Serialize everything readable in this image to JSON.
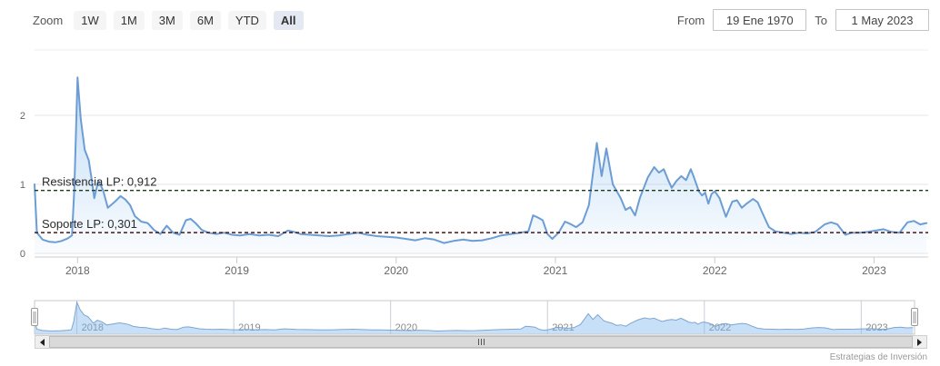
{
  "toolbar": {
    "zoom_label": "Zoom",
    "zoom_buttons": [
      "1W",
      "1M",
      "3M",
      "6M",
      "YTD",
      "All"
    ],
    "selected_zoom": "All",
    "from_label": "From",
    "from_value": "19 Ene 1970",
    "to_label": "To",
    "to_value": "1 May 2023"
  },
  "credit": "Estrategias de Inversión",
  "colors": {
    "series_line": "#6c9dd4",
    "series_fill": "#7cb5ec",
    "grid": "#e6e6e6",
    "axis_line": "#cccccc",
    "axis_label": "#666666",
    "resistance_line": "#1d3a1d",
    "support_line": "#4a1515",
    "annotation_text": "#2b2b2b",
    "nav_grid": "#c9ced7",
    "nav_label": "#8a8a8a",
    "selected_button_bg": "#e4e8f2"
  },
  "chart_data": {
    "type": "area",
    "title": "",
    "xlabel": "",
    "ylabel": "",
    "grid": true,
    "legend_position": "none",
    "xlim": [
      2017.73,
      2023.34
    ],
    "ylim": [
      0,
      2.9
    ],
    "x_ticks": [
      2018,
      2019,
      2020,
      2021,
      2022,
      2023
    ],
    "x_tick_labels": [
      "2018",
      "2019",
      "2020",
      "2021",
      "2022",
      "2023"
    ],
    "y_ticks": [
      0,
      1,
      2
    ],
    "y_tick_labels": [
      "0",
      "1",
      "2"
    ],
    "series": [
      {
        "name": "price",
        "color": "#6c9dd4",
        "points": [
          [
            2017.73,
            1.0
          ],
          [
            2017.745,
            0.3
          ],
          [
            2017.78,
            0.2
          ],
          [
            2017.82,
            0.17
          ],
          [
            2017.86,
            0.16
          ],
          [
            2017.9,
            0.18
          ],
          [
            2017.94,
            0.22
          ],
          [
            2017.965,
            0.26
          ],
          [
            2017.98,
            0.95
          ],
          [
            2018.0,
            2.55
          ],
          [
            2018.02,
            1.95
          ],
          [
            2018.045,
            1.5
          ],
          [
            2018.07,
            1.35
          ],
          [
            2018.09,
            1.05
          ],
          [
            2018.105,
            0.8
          ],
          [
            2018.13,
            1.05
          ],
          [
            2018.16,
            0.92
          ],
          [
            2018.19,
            0.66
          ],
          [
            2018.23,
            0.74
          ],
          [
            2018.27,
            0.83
          ],
          [
            2018.3,
            0.78
          ],
          [
            2018.33,
            0.7
          ],
          [
            2018.36,
            0.54
          ],
          [
            2018.4,
            0.46
          ],
          [
            2018.44,
            0.44
          ],
          [
            2018.48,
            0.34
          ],
          [
            2018.52,
            0.28
          ],
          [
            2018.56,
            0.4
          ],
          [
            2018.6,
            0.3
          ],
          [
            2018.64,
            0.27
          ],
          [
            2018.68,
            0.48
          ],
          [
            2018.71,
            0.5
          ],
          [
            2018.74,
            0.44
          ],
          [
            2018.78,
            0.34
          ],
          [
            2018.82,
            0.3
          ],
          [
            2018.87,
            0.28
          ],
          [
            2018.92,
            0.3
          ],
          [
            2018.97,
            0.27
          ],
          [
            2019.02,
            0.26
          ],
          [
            2019.08,
            0.28
          ],
          [
            2019.14,
            0.26
          ],
          [
            2019.2,
            0.27
          ],
          [
            2019.26,
            0.25
          ],
          [
            2019.32,
            0.33
          ],
          [
            2019.36,
            0.31
          ],
          [
            2019.4,
            0.28
          ],
          [
            2019.46,
            0.27
          ],
          [
            2019.52,
            0.26
          ],
          [
            2019.58,
            0.25
          ],
          [
            2019.64,
            0.26
          ],
          [
            2019.7,
            0.28
          ],
          [
            2019.76,
            0.3
          ],
          [
            2019.82,
            0.27
          ],
          [
            2019.88,
            0.25
          ],
          [
            2019.94,
            0.24
          ],
          [
            2020.0,
            0.23
          ],
          [
            2020.06,
            0.21
          ],
          [
            2020.12,
            0.19
          ],
          [
            2020.18,
            0.22
          ],
          [
            2020.24,
            0.2
          ],
          [
            2020.3,
            0.15
          ],
          [
            2020.36,
            0.18
          ],
          [
            2020.42,
            0.2
          ],
          [
            2020.48,
            0.18
          ],
          [
            2020.54,
            0.19
          ],
          [
            2020.6,
            0.22
          ],
          [
            2020.66,
            0.26
          ],
          [
            2020.72,
            0.28
          ],
          [
            2020.78,
            0.3
          ],
          [
            2020.83,
            0.32
          ],
          [
            2020.86,
            0.55
          ],
          [
            2020.89,
            0.52
          ],
          [
            2020.92,
            0.48
          ],
          [
            2020.95,
            0.28
          ],
          [
            2020.98,
            0.21
          ],
          [
            2021.02,
            0.3
          ],
          [
            2021.06,
            0.46
          ],
          [
            2021.09,
            0.43
          ],
          [
            2021.13,
            0.38
          ],
          [
            2021.17,
            0.45
          ],
          [
            2021.21,
            0.7
          ],
          [
            2021.26,
            1.6
          ],
          [
            2021.29,
            1.12
          ],
          [
            2021.32,
            1.52
          ],
          [
            2021.36,
            1.0
          ],
          [
            2021.38,
            0.92
          ],
          [
            2021.41,
            0.8
          ],
          [
            2021.44,
            0.63
          ],
          [
            2021.47,
            0.67
          ],
          [
            2021.5,
            0.55
          ],
          [
            2021.53,
            0.8
          ],
          [
            2021.58,
            1.1
          ],
          [
            2021.62,
            1.25
          ],
          [
            2021.65,
            1.17
          ],
          [
            2021.68,
            1.22
          ],
          [
            2021.71,
            1.05
          ],
          [
            2021.73,
            0.95
          ],
          [
            2021.76,
            1.05
          ],
          [
            2021.79,
            1.12
          ],
          [
            2021.82,
            1.06
          ],
          [
            2021.85,
            1.22
          ],
          [
            2021.87,
            1.1
          ],
          [
            2021.9,
            0.9
          ],
          [
            2021.92,
            0.84
          ],
          [
            2021.94,
            0.88
          ],
          [
            2021.96,
            0.72
          ],
          [
            2021.98,
            0.86
          ],
          [
            2022.0,
            0.9
          ],
          [
            2022.03,
            0.8
          ],
          [
            2022.07,
            0.53
          ],
          [
            2022.11,
            0.75
          ],
          [
            2022.14,
            0.77
          ],
          [
            2022.17,
            0.66
          ],
          [
            2022.2,
            0.72
          ],
          [
            2022.24,
            0.79
          ],
          [
            2022.27,
            0.74
          ],
          [
            2022.3,
            0.58
          ],
          [
            2022.34,
            0.38
          ],
          [
            2022.38,
            0.32
          ],
          [
            2022.43,
            0.3
          ],
          [
            2022.48,
            0.28
          ],
          [
            2022.53,
            0.3
          ],
          [
            2022.58,
            0.29
          ],
          [
            2022.63,
            0.31
          ],
          [
            2022.69,
            0.42
          ],
          [
            2022.73,
            0.45
          ],
          [
            2022.77,
            0.42
          ],
          [
            2022.82,
            0.27
          ],
          [
            2022.86,
            0.3
          ],
          [
            2022.91,
            0.3
          ],
          [
            2022.96,
            0.31
          ],
          [
            2023.01,
            0.33
          ],
          [
            2023.06,
            0.35
          ],
          [
            2023.11,
            0.31
          ],
          [
            2023.16,
            0.3
          ],
          [
            2023.21,
            0.45
          ],
          [
            2023.25,
            0.47
          ],
          [
            2023.29,
            0.42
          ],
          [
            2023.33,
            0.44
          ]
        ]
      }
    ],
    "annotations": [
      {
        "name": "resistance",
        "label": "Resistencia LP: 0,912",
        "value": 0.912,
        "line_style": "dashed",
        "color": "#1d3a1d"
      },
      {
        "name": "support",
        "label": "Soporte LP: 0,301",
        "value": 0.301,
        "line_style": "dashed",
        "color": "#4a1515"
      }
    ],
    "navigator": {
      "x_ticks": [
        2018,
        2019,
        2020,
        2021,
        2022,
        2023
      ],
      "x_tick_labels": [
        "2018",
        "2019",
        "2020",
        "2021",
        "2022",
        "2023"
      ],
      "range_selected": "all"
    }
  }
}
